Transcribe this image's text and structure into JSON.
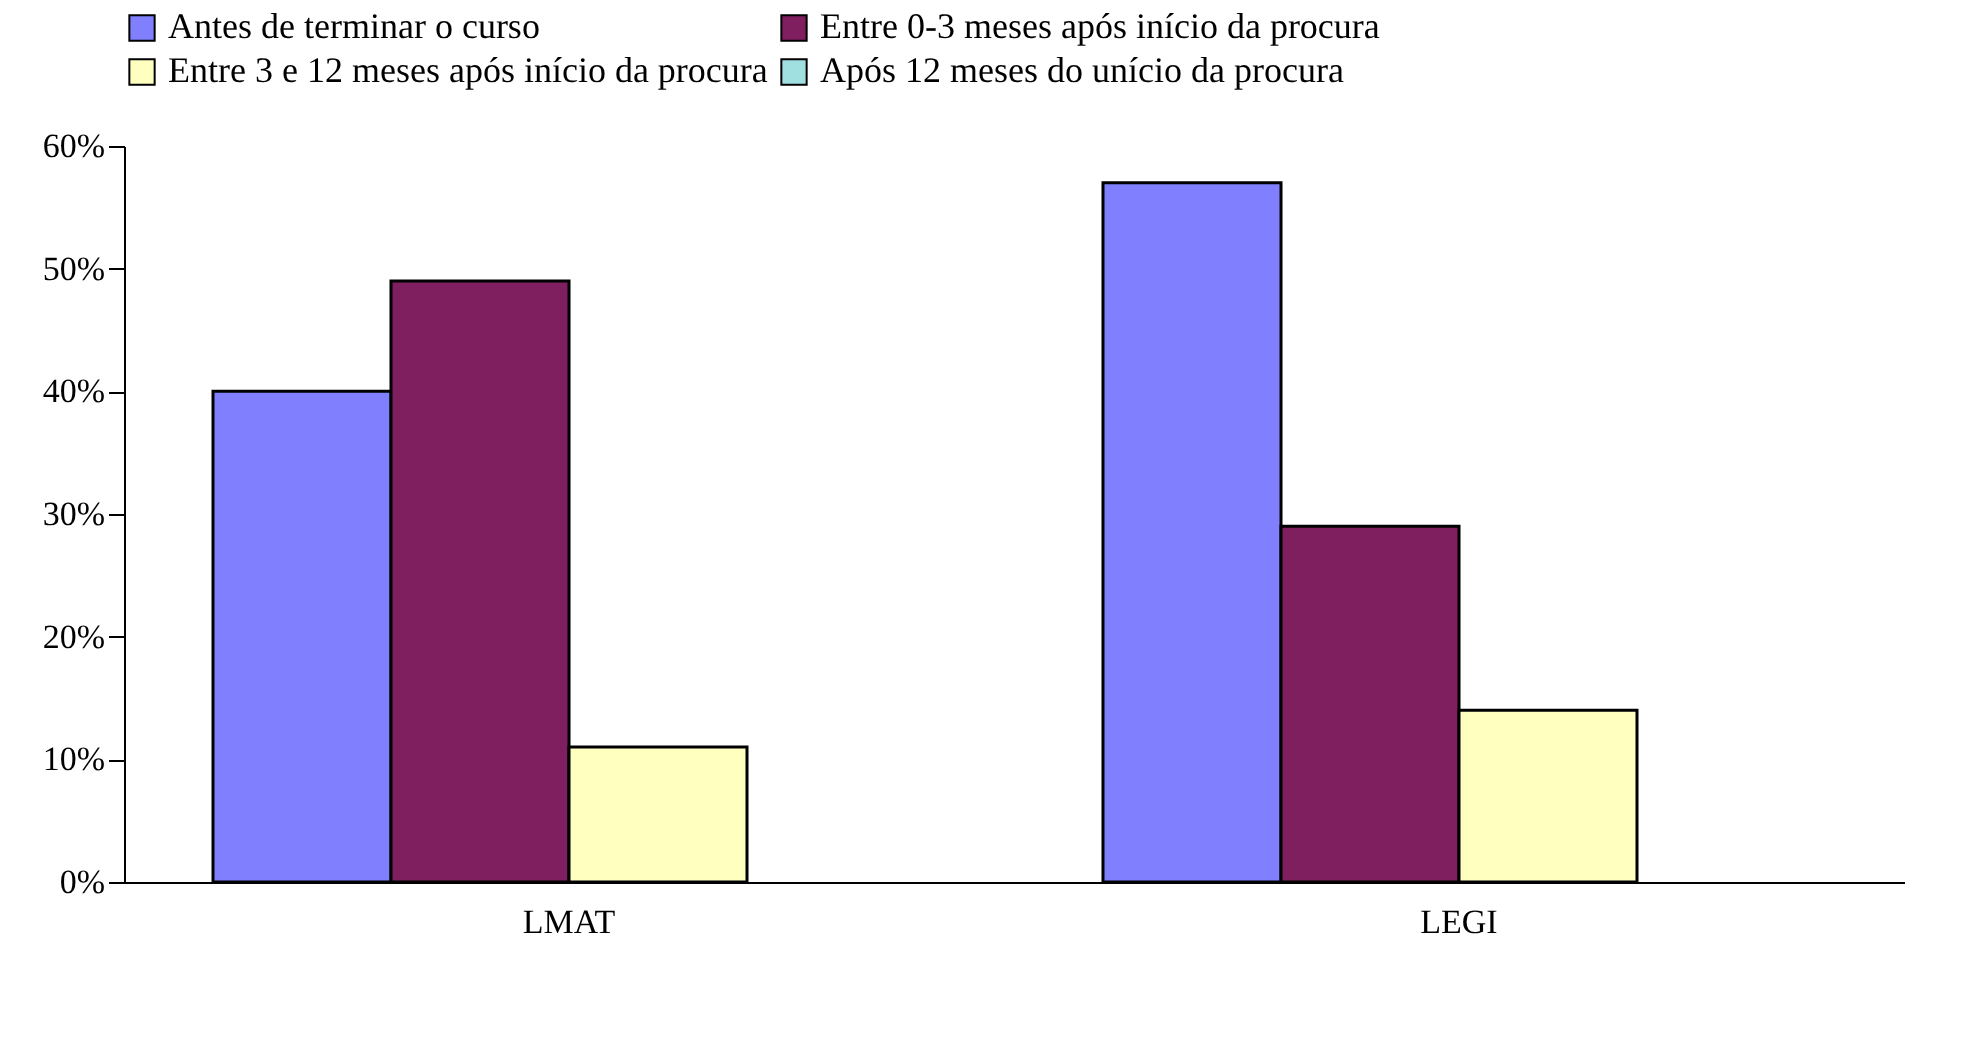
{
  "chart_data": {
    "type": "bar",
    "categories": [
      "LMAT",
      "LEGI"
    ],
    "series": [
      {
        "name": "Antes de terminar o curso",
        "color": "#8080ff",
        "values": [
          40,
          57
        ]
      },
      {
        "name": "Entre 0-3 meses após início da procura",
        "color": "#7f1f5f",
        "values": [
          49,
          29
        ]
      },
      {
        "name": "Entre 3 e 12 meses após início da procura",
        "color": "#ffffc0",
        "values": [
          11,
          14
        ]
      },
      {
        "name": "Após 12 meses do unício da procura",
        "color": "#a0e0e0",
        "values": [
          null,
          null
        ]
      }
    ],
    "ylim": [
      0,
      60
    ],
    "yticks": [
      {
        "value": 0,
        "label": "0%"
      },
      {
        "value": 10,
        "label": "10%"
      },
      {
        "value": 20,
        "label": "20%"
      },
      {
        "value": 30,
        "label": "30%"
      },
      {
        "value": 40,
        "label": "40%"
      },
      {
        "value": 50,
        "label": "50%"
      },
      {
        "value": 60,
        "label": "60%"
      }
    ],
    "grid": false,
    "legend": "top"
  }
}
